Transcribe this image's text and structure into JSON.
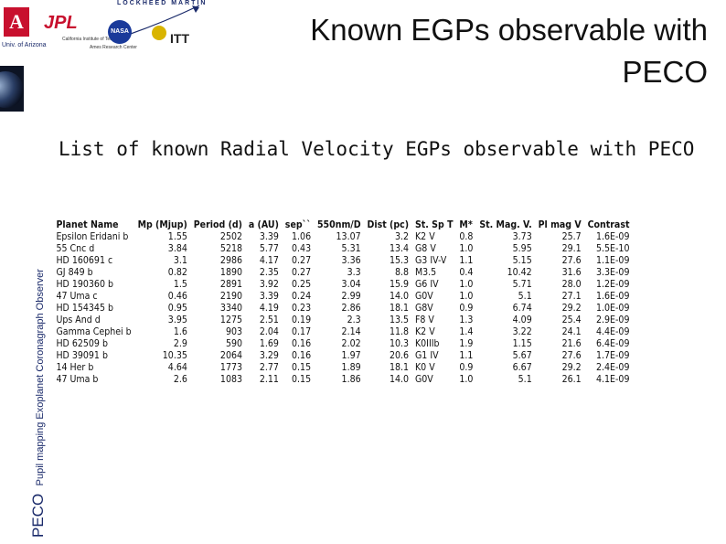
{
  "header": {
    "title": "Known EGPs observable with PECO",
    "logos": {
      "lockheed": "LOCKHEED MARTIN",
      "ua_letter": "A",
      "ua_caption": "Univ. of Arizona",
      "jpl": "JPL",
      "jpl_caption": "California Institute of Technology",
      "nasa": "NASA",
      "ames": "Ames Research Center",
      "itt": "ITT"
    }
  },
  "sidebar": {
    "acronym": "PECO",
    "full_name": "Pupil mapping Exoplanet Coronagraph Observer"
  },
  "subtitle": "List of known Radial Velocity EGPs observable with PECO",
  "table": {
    "headers": [
      "Planet Name",
      "Mp (Mjup)",
      "Period (d)",
      "a (AU)",
      "sep``",
      "550nm/D",
      "Dist (pc)",
      "St. Sp T",
      "M*",
      "St. Mag. V.",
      "Pl mag V",
      "Contrast"
    ],
    "rows": [
      [
        "Epsilon Eridani b",
        "1.55",
        "2502",
        "3.39",
        "1.06",
        "13.07",
        "3.2",
        "K2 V",
        "0.8",
        "3.73",
        "25.7",
        "1.6E-09"
      ],
      [
        "55 Cnc d",
        "3.84",
        "5218",
        "5.77",
        "0.43",
        "5.31",
        "13.4",
        "G8 V",
        "1.0",
        "5.95",
        "29.1",
        "5.5E-10"
      ],
      [
        "HD 160691 c",
        "3.1",
        "2986",
        "4.17",
        "0.27",
        "3.36",
        "15.3",
        "G3 IV-V",
        "1.1",
        "5.15",
        "27.6",
        "1.1E-09"
      ],
      [
        "GJ 849 b",
        "0.82",
        "1890",
        "2.35",
        "0.27",
        "3.3",
        "8.8",
        "M3.5",
        "0.4",
        "10.42",
        "31.6",
        "3.3E-09"
      ],
      [
        "HD 190360 b",
        "1.5",
        "2891",
        "3.92",
        "0.25",
        "3.04",
        "15.9",
        "G6 IV",
        "1.0",
        "5.71",
        "28.0",
        "1.2E-09"
      ],
      [
        "47 Uma c",
        "0.46",
        "2190",
        "3.39",
        "0.24",
        "2.99",
        "14.0",
        "G0V",
        "1.0",
        "5.1",
        "27.1",
        "1.6E-09"
      ],
      [
        "HD 154345 b",
        "0.95",
        "3340",
        "4.19",
        "0.23",
        "2.86",
        "18.1",
        "G8V",
        "0.9",
        "6.74",
        "29.2",
        "1.0E-09"
      ],
      [
        "Ups And d",
        "3.95",
        "1275",
        "2.51",
        "0.19",
        "2.3",
        "13.5",
        "F8 V",
        "1.3",
        "4.09",
        "25.4",
        "2.9E-09"
      ],
      [
        "Gamma Cephei b",
        "1.6",
        "903",
        "2.04",
        "0.17",
        "2.14",
        "11.8",
        "K2 V",
        "1.4",
        "3.22",
        "24.1",
        "4.4E-09"
      ],
      [
        "HD 62509 b",
        "2.9",
        "590",
        "1.69",
        "0.16",
        "2.02",
        "10.3",
        "K0IIIb",
        "1.9",
        "1.15",
        "21.6",
        "6.4E-09"
      ],
      [
        "HD 39091 b",
        "10.35",
        "2064",
        "3.29",
        "0.16",
        "1.97",
        "20.6",
        "G1 IV",
        "1.1",
        "5.67",
        "27.6",
        "1.7E-09"
      ],
      [
        "14 Her b",
        "4.64",
        "1773",
        "2.77",
        "0.15",
        "1.89",
        "18.1",
        "K0 V",
        "0.9",
        "6.67",
        "29.2",
        "2.4E-09"
      ],
      [
        "47 Uma b",
        "2.6",
        "1083",
        "2.11",
        "0.15",
        "1.86",
        "14.0",
        "G0V",
        "1.0",
        "5.1",
        "26.1",
        "4.1E-09"
      ]
    ]
  }
}
